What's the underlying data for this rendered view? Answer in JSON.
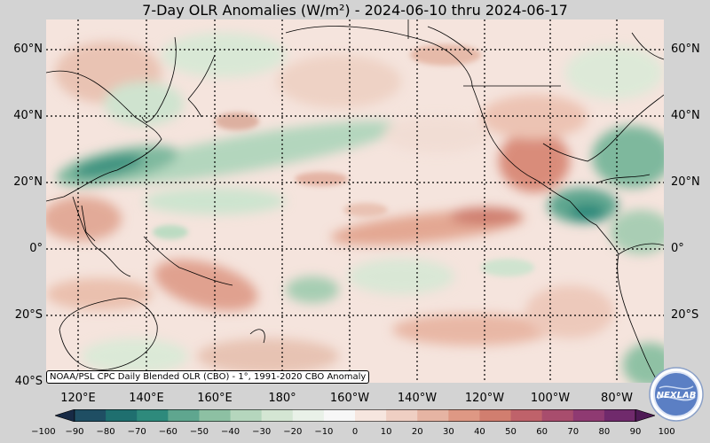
{
  "title": "7-Day OLR Anomalies (W/m²) - 2024-06-10 thru 2024-06-17",
  "map": {
    "lat_labels": [
      "60°N",
      "40°N",
      "20°N",
      "0°",
      "20°S",
      "40°S"
    ],
    "lon_labels": [
      "120°E",
      "140°E",
      "160°E",
      "180°",
      "160°W",
      "140°W",
      "120°W",
      "100°W",
      "80°W"
    ]
  },
  "colorbar": {
    "ticks": [
      "−100",
      "−90",
      "−80",
      "−70",
      "−60",
      "−50",
      "−40",
      "−30",
      "−20",
      "−10",
      "0",
      "10",
      "20",
      "30",
      "40",
      "50",
      "60",
      "70",
      "80",
      "90",
      "100"
    ],
    "colors": [
      "#172a45",
      "#1f4e63",
      "#1f6f6f",
      "#2e8a7c",
      "#5fa68f",
      "#8dc0a3",
      "#b5d6bd",
      "#d4e6d3",
      "#e9f1e8",
      "#f7f7f7",
      "#f6e6df",
      "#efcfc3",
      "#e6b4a3",
      "#de9884",
      "#d17e6f",
      "#bf626a",
      "#a84d6d",
      "#8f3a72",
      "#702a6c",
      "#4e1a55"
    ]
  },
  "credit": "NOAA/PSL CPC Daily Blended OLR (CBO) - 1°, 1991-2020 CBO Anomaly",
  "logo_text": "NEXLAB"
}
